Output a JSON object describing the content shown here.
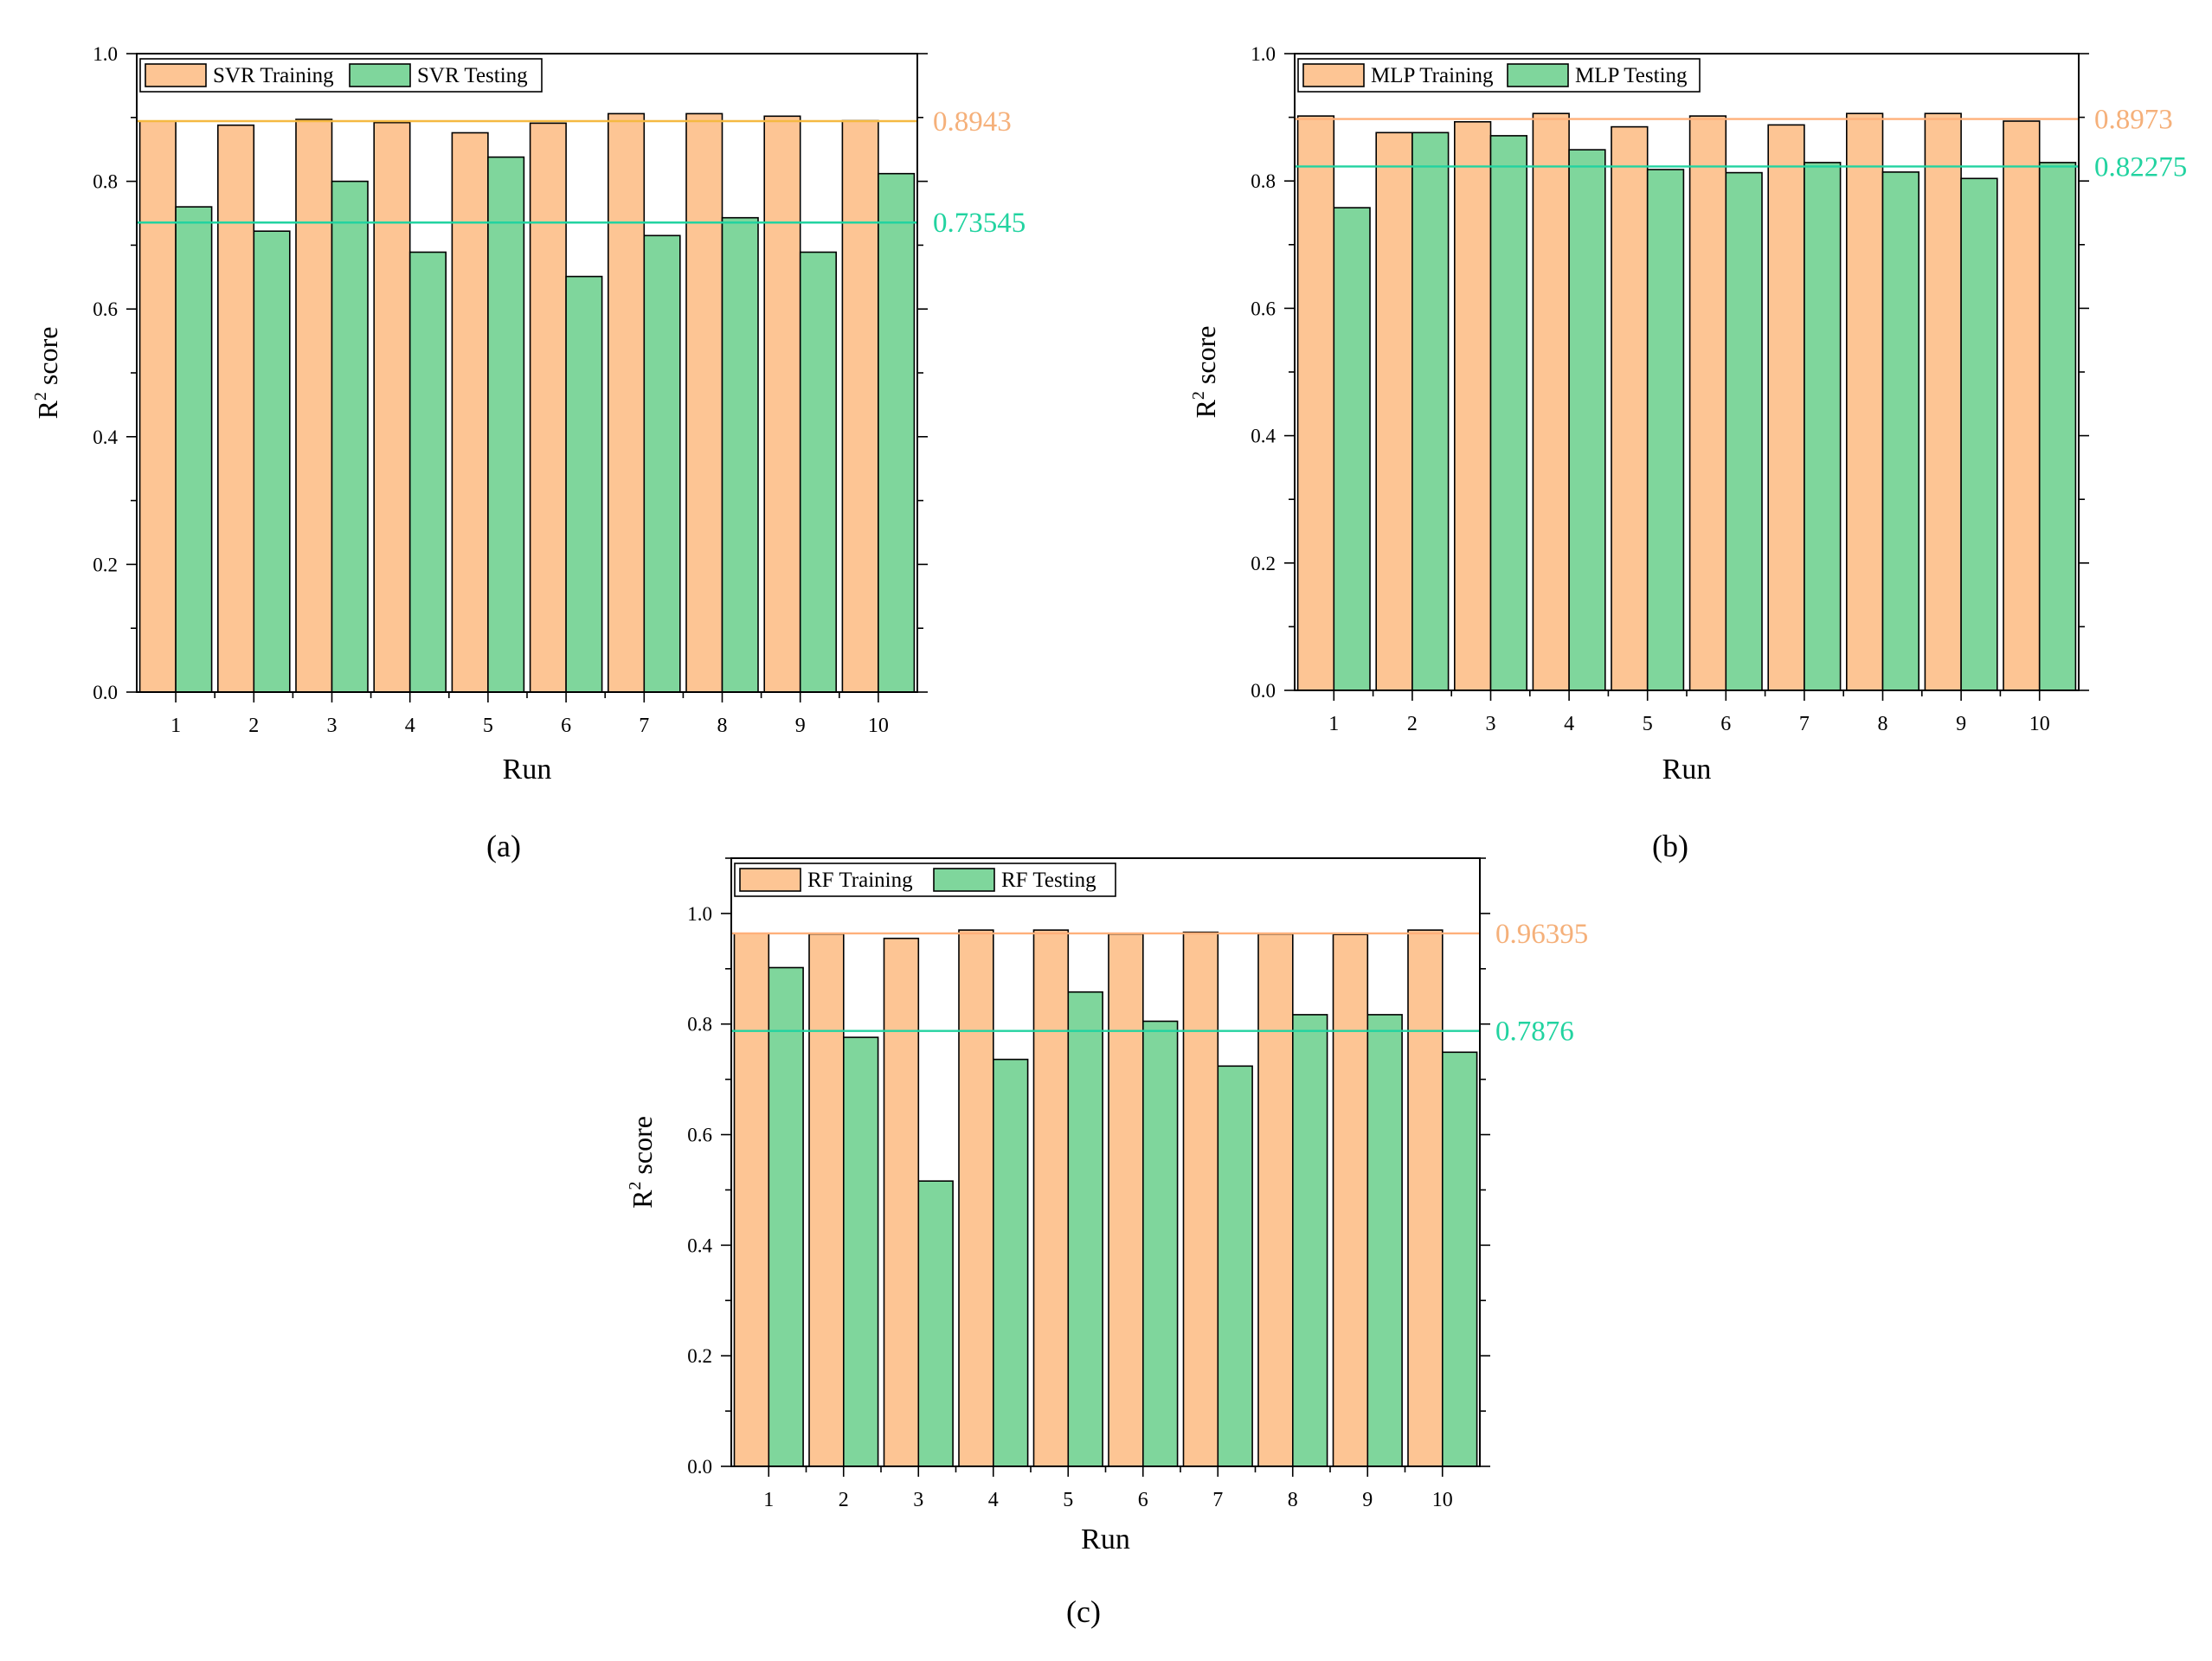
{
  "figure": {
    "background": "#ffffff"
  },
  "colors": {
    "training": "#FDC594",
    "testing": "#7FD69C",
    "training_line": "#FFB07A",
    "training_line_a": "#F5B942",
    "testing_line": "#22D3A0",
    "frame": "#000000"
  },
  "chart_data": [
    {
      "id": "a",
      "type": "bar",
      "panel_label": "(a)",
      "title": "",
      "xlabel": "Run",
      "ylabel_base": "R",
      "ylabel_sup": "2",
      "ylabel_rest": " score",
      "categories": [
        "1",
        "2",
        "3",
        "4",
        "5",
        "6",
        "7",
        "8",
        "9",
        "10"
      ],
      "series": [
        {
          "name": "SVR Training",
          "values": [
            0.894,
            0.888,
            0.897,
            0.892,
            0.876,
            0.891,
            0.906,
            0.906,
            0.902,
            0.895
          ]
        },
        {
          "name": "SVR Testing",
          "values": [
            0.76,
            0.722,
            0.8,
            0.689,
            0.838,
            0.651,
            0.715,
            0.743,
            0.689,
            0.812
          ]
        }
      ],
      "ylim": [
        0,
        1.0
      ],
      "yticks": [
        0.0,
        0.2,
        0.4,
        0.6,
        0.8,
        1.0
      ],
      "ytick_labels": [
        "0.0",
        "0.2",
        "0.4",
        "0.6",
        "0.8",
        "1.0"
      ],
      "reference_lines": [
        {
          "series": "training",
          "value": 0.8943,
          "label": "0.8943",
          "line_color": "#F5B942",
          "label_color": "#F5B07A"
        },
        {
          "series": "testing",
          "value": 0.73545,
          "label": "0.73545",
          "line_color": "#22D3A0",
          "label_color": "#22D3A0"
        }
      ],
      "legend": "top-left"
    },
    {
      "id": "b",
      "type": "bar",
      "panel_label": "(b)",
      "title": "",
      "xlabel": "Run",
      "ylabel_base": "R",
      "ylabel_sup": "2",
      "ylabel_rest": " score",
      "categories": [
        "1",
        "2",
        "3",
        "4",
        "5",
        "6",
        "7",
        "8",
        "9",
        "10"
      ],
      "series": [
        {
          "name": "MLP Training",
          "values": [
            0.902,
            0.876,
            0.893,
            0.906,
            0.885,
            0.902,
            0.888,
            0.906,
            0.906,
            0.894
          ]
        },
        {
          "name": "MLP Testing",
          "values": [
            0.758,
            0.876,
            0.871,
            0.849,
            0.818,
            0.813,
            0.829,
            0.814,
            0.804,
            0.829
          ]
        }
      ],
      "ylim": [
        0,
        1.0
      ],
      "yticks": [
        0.0,
        0.2,
        0.4,
        0.6,
        0.8,
        1.0
      ],
      "ytick_labels": [
        "0.0",
        "0.2",
        "0.4",
        "0.6",
        "0.8",
        "1.0"
      ],
      "reference_lines": [
        {
          "series": "training",
          "value": 0.8973,
          "label": "0.8973",
          "line_color": "#FFB07A",
          "label_color": "#F5B07A"
        },
        {
          "series": "testing",
          "value": 0.82275,
          "label": "0.82275",
          "line_color": "#22D3A0",
          "label_color": "#22D3A0"
        }
      ],
      "legend": "top-left"
    },
    {
      "id": "c",
      "type": "bar",
      "panel_label": "(c)",
      "title": "",
      "xlabel": "Run",
      "ylabel_base": "R",
      "ylabel_sup": "2",
      "ylabel_rest": " score",
      "categories": [
        "1",
        "2",
        "3",
        "4",
        "5",
        "6",
        "7",
        "8",
        "9",
        "10"
      ],
      "series": [
        {
          "name": "RF Training",
          "values": [
            0.964,
            0.963,
            0.955,
            0.97,
            0.97,
            0.963,
            0.966,
            0.963,
            0.962,
            0.97
          ]
        },
        {
          "name": "RF Testing",
          "values": [
            0.902,
            0.776,
            0.516,
            0.736,
            0.858,
            0.805,
            0.724,
            0.817,
            0.817,
            0.749
          ]
        }
      ],
      "ylim": [
        0,
        1.1
      ],
      "yticks": [
        0.0,
        0.2,
        0.4,
        0.6,
        0.8,
        1.0
      ],
      "ytick_labels": [
        "0.0",
        "0.2",
        "0.4",
        "0.6",
        "0.8",
        "1.0"
      ],
      "reference_lines": [
        {
          "series": "training",
          "value": 0.96395,
          "label": "0.96395",
          "line_color": "#FFB07A",
          "label_color": "#F5B07A"
        },
        {
          "series": "testing",
          "value": 0.7876,
          "label": "0.7876",
          "line_color": "#22D3A0",
          "label_color": "#22D3A0"
        }
      ],
      "legend": "top-left"
    }
  ]
}
